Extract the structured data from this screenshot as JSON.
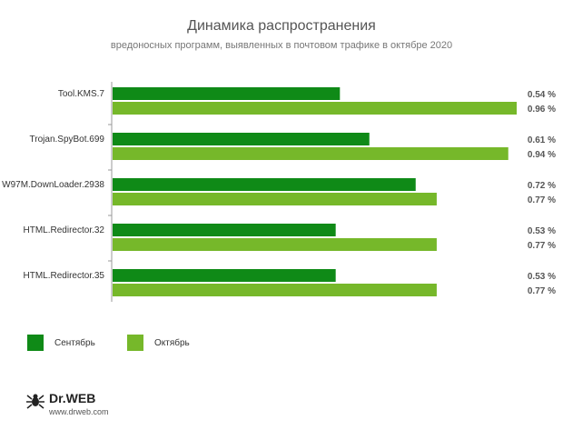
{
  "colors": {
    "september": "#0f8a17",
    "october": "#76b82a",
    "axis": "#999999"
  },
  "legend": {
    "september": "Сентябрь",
    "october": "Октябрь"
  },
  "logo": {
    "name": "Dr.WEB",
    "url": "www.drweb.com"
  },
  "chart_data": {
    "type": "bar",
    "orientation": "horizontal",
    "title": "Динамика распространения",
    "subtitle": "вредоносных программ, выявленных в почтовом трафике в октябре 2020",
    "categories": [
      "Tool.KMS.7",
      "Trojan.SpyBot.699",
      "W97M.DownLoader.2938",
      "HTML.Redirector.32",
      "HTML.Redirector.35"
    ],
    "series": [
      {
        "name": "Сентябрь",
        "values": [
          0.54,
          0.61,
          0.72,
          0.53,
          0.53
        ],
        "labels": [
          "0.54 %",
          "0.61 %",
          "0.72 %",
          "0.53 %",
          "0.53 %"
        ]
      },
      {
        "name": "Октябрь",
        "values": [
          0.96,
          0.94,
          0.77,
          0.77,
          0.77
        ],
        "labels": [
          "0.96 %",
          "0.94 %",
          "0.77 %",
          "0.77 %",
          "0.77 %"
        ]
      }
    ],
    "xlim": [
      0,
      0.96
    ],
    "grid": false,
    "legend_position": "bottom-left"
  }
}
